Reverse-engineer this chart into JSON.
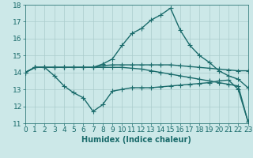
{
  "line1_x": [
    0,
    1,
    2,
    3,
    4,
    5,
    6,
    7,
    8,
    9,
    10,
    11,
    12,
    13,
    14,
    15,
    16,
    17,
    18,
    19,
    20,
    21,
    22,
    23
  ],
  "line1_y": [
    14.0,
    14.3,
    14.3,
    14.3,
    14.3,
    14.3,
    14.3,
    14.3,
    14.4,
    14.45,
    14.45,
    14.45,
    14.45,
    14.45,
    14.45,
    14.45,
    14.4,
    14.35,
    14.3,
    14.25,
    14.2,
    14.15,
    14.1,
    14.1
  ],
  "line2_x": [
    0,
    1,
    2,
    3,
    4,
    5,
    6,
    7,
    8,
    9,
    10,
    11,
    12,
    13,
    14,
    15,
    16,
    17,
    18,
    19,
    20,
    21,
    22,
    23
  ],
  "line2_y": [
    14.0,
    14.3,
    14.3,
    14.3,
    14.3,
    14.3,
    14.3,
    14.3,
    14.5,
    14.8,
    15.6,
    16.3,
    16.6,
    17.1,
    17.4,
    17.8,
    16.5,
    15.6,
    15.0,
    14.6,
    14.1,
    13.8,
    13.6,
    13.1
  ],
  "line3_x": [
    0,
    1,
    2,
    3,
    4,
    5,
    6,
    7,
    8,
    9,
    10,
    11,
    12,
    13,
    14,
    15,
    16,
    17,
    18,
    19,
    20,
    21,
    22,
    23
  ],
  "line3_y": [
    14.0,
    14.3,
    14.3,
    13.8,
    13.2,
    12.8,
    12.5,
    11.7,
    12.1,
    12.9,
    13.0,
    13.1,
    13.1,
    13.1,
    13.15,
    13.2,
    13.25,
    13.3,
    13.35,
    13.4,
    13.5,
    13.55,
    13.0,
    11.1
  ],
  "line4_x": [
    0,
    1,
    2,
    3,
    4,
    5,
    6,
    7,
    8,
    9,
    10,
    11,
    12,
    13,
    14,
    15,
    16,
    17,
    18,
    19,
    20,
    21,
    22,
    23
  ],
  "line4_y": [
    14.0,
    14.3,
    14.3,
    14.3,
    14.3,
    14.3,
    14.3,
    14.3,
    14.3,
    14.3,
    14.3,
    14.25,
    14.2,
    14.1,
    14.0,
    13.9,
    13.8,
    13.7,
    13.6,
    13.5,
    13.4,
    13.3,
    13.2,
    11.1
  ],
  "bg_color": "#cce8e8",
  "line_color": "#1a6b6b",
  "grid_color": "#aacccc",
  "xlabel": "Humidex (Indice chaleur)",
  "ylim": [
    11,
    18
  ],
  "xlim": [
    0,
    23
  ],
  "yticks": [
    11,
    12,
    13,
    14,
    15,
    16,
    17,
    18
  ],
  "xticks": [
    0,
    1,
    2,
    3,
    4,
    5,
    6,
    7,
    8,
    9,
    10,
    11,
    12,
    13,
    14,
    15,
    16,
    17,
    18,
    19,
    20,
    21,
    22,
    23
  ],
  "marker": "+",
  "marker_size": 4,
  "line_width": 1.0,
  "font_size": 6.5
}
